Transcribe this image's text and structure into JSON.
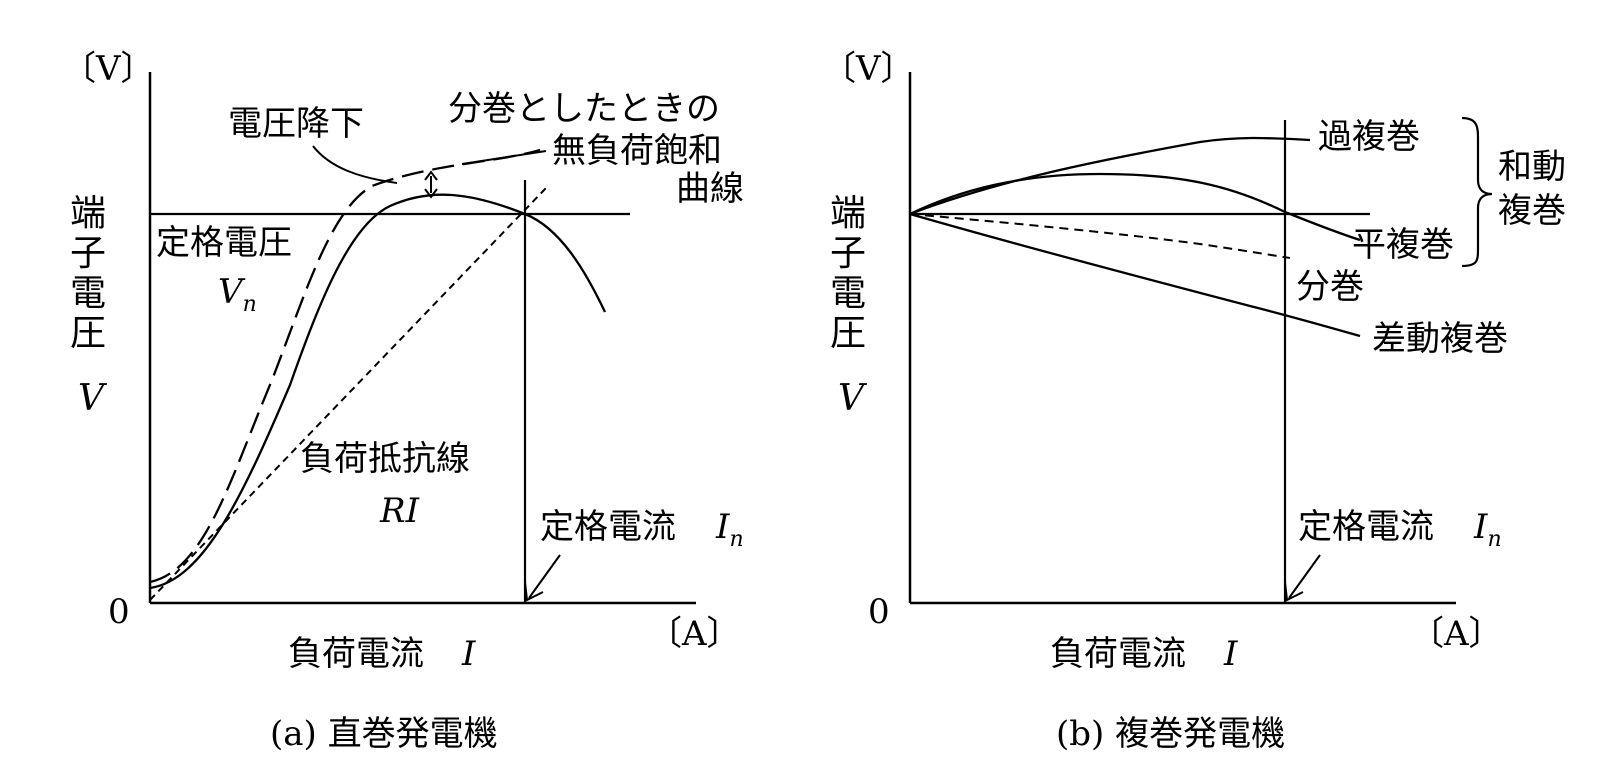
{
  "panel_a": {
    "y_unit": "〔V〕",
    "x_unit": "〔A〕",
    "origin": "0",
    "y_axis_label_chars": [
      "端",
      "子",
      "電",
      "圧"
    ],
    "y_axis_symbol": "V",
    "x_axis_label": "負荷電流",
    "x_axis_symbol": "I",
    "voltage_drop": "電圧降下",
    "shunt_note_line1": "分巻としたときの",
    "shunt_note_line2": "無負荷飽和",
    "shunt_note_line3": "曲線",
    "rated_voltage": "定格電圧",
    "rated_voltage_symbol": "V",
    "rated_voltage_sub": "n",
    "load_line": "負荷抵抗線",
    "load_line_symbol": "RI",
    "rated_current": "定格電流",
    "rated_current_symbol": "I",
    "rated_current_sub": "n",
    "caption": "(a) 直巻発電機"
  },
  "panel_b": {
    "y_unit": "〔V〕",
    "x_unit": "〔A〕",
    "origin": "0",
    "y_axis_label_chars": [
      "端",
      "子",
      "電",
      "圧"
    ],
    "y_axis_symbol": "V",
    "x_axis_label": "負荷電流",
    "x_axis_symbol": "I",
    "over_compound": "過複巻",
    "flat_compound": "平複巻",
    "cumulative_line1": "和動",
    "cumulative_line2": "複巻",
    "shunt": "分巻",
    "differential": "差動複巻",
    "rated_current": "定格電流",
    "rated_current_symbol": "I",
    "rated_current_sub": "n",
    "caption": "(b) 複巻発電機"
  }
}
